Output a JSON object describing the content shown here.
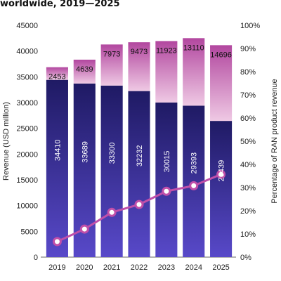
{
  "chart_data": {
    "type": "bar",
    "title": "worldwide, 2019—2025",
    "categories": [
      "2019",
      "2020",
      "2021",
      "2022",
      "2023",
      "2024",
      "2025"
    ],
    "series": [
      {
        "values": [
          34410,
          33689,
          33300,
          32232,
          30015,
          29393,
          26439
        ],
        "color": "#241e6e"
      },
      {
        "values": [
          2453,
          4639,
          7973,
          9473,
          11923,
          13110,
          14696
        ],
        "color": "#b0509f"
      }
    ],
    "bottom_labels": [
      "34410",
      "33689",
      "33300",
      "32232",
      "30015",
      "29393",
      "26439"
    ],
    "top_labels": [
      "2453",
      "4639",
      "7973",
      "9473",
      "11923",
      "13110",
      "14696"
    ],
    "line_series": {
      "axis": "right",
      "values": [
        6.7,
        12.1,
        19.3,
        22.7,
        28.4,
        30.8,
        35.7
      ],
      "color": "#c04fa9"
    },
    "ylabel": "Revenue (USD million)",
    "ylabel_right": "Percentage of RAN product revenue",
    "ylim": [
      0,
      45000
    ],
    "yticks": [
      "0",
      "5000",
      "10000",
      "15000",
      "20000",
      "25000",
      "30000",
      "35000",
      "40000",
      "45000"
    ],
    "ylim_right": [
      0,
      100
    ],
    "yticks_right": [
      "0%",
      "10%",
      "20%",
      "30%",
      "40%",
      "50%",
      "60%",
      "70%",
      "80%",
      "90%",
      "100%"
    ],
    "grid": false,
    "legend": "none"
  }
}
